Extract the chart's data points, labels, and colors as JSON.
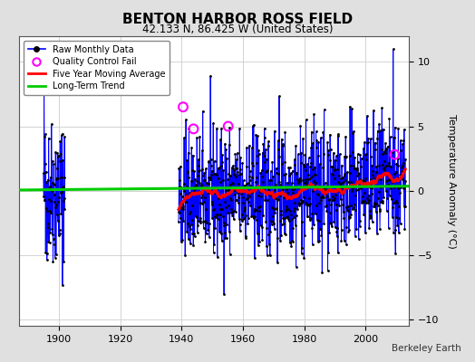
{
  "title": "BENTON HARBOR ROSS FIELD",
  "subtitle": "42.133 N, 86.425 W (United States)",
  "ylabel": "Temperature Anomaly (°C)",
  "attribution": "Berkeley Earth",
  "xlim": [
    1887,
    2014
  ],
  "ylim": [
    -10.5,
    12
  ],
  "yticks": [
    -10,
    -5,
    0,
    5,
    10
  ],
  "xticks": [
    1900,
    1920,
    1940,
    1960,
    1980,
    2000
  ],
  "fig_bg_color": "#e0e0e0",
  "plot_bg_color": "#ffffff",
  "raw_line_color": "#0000ff",
  "raw_dot_color": "#000000",
  "qc_fail_color": "#ff00ff",
  "moving_avg_color": "#ff0000",
  "trend_color": "#00cc00",
  "seed": 42,
  "early_start": 1895,
  "early_end": 1902,
  "main_start": 1939,
  "main_end": 2013,
  "qc_times": [
    1940.5,
    1943.9,
    1955.2,
    2009.5
  ],
  "qc_vals": [
    6.5,
    4.8,
    5.0,
    2.8
  ]
}
